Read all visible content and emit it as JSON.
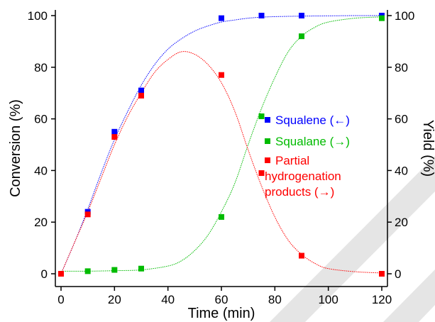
{
  "chart_data": {
    "type": "scatter",
    "xlabel": "Time (min)",
    "ylabel_left": "Conversion (%)",
    "ylabel_right": "Yield (%)",
    "xlim": [
      0,
      120
    ],
    "ylim": [
      0,
      100
    ],
    "xticks": [
      0,
      20,
      40,
      60,
      80,
      100,
      120
    ],
    "yticks": [
      0,
      20,
      40,
      60,
      80,
      100
    ],
    "grid": false,
    "legend_position": "right",
    "series": [
      {
        "name": "Squalene (←)",
        "color": "#0000ff",
        "x": [
          0,
          10,
          20,
          30,
          60,
          75,
          90,
          120
        ],
        "y": [
          0,
          24,
          55,
          71,
          99,
          100,
          100,
          100
        ],
        "fit_x": [
          0,
          5,
          10,
          15,
          20,
          25,
          30,
          35,
          40,
          45,
          50,
          55,
          60,
          65,
          70,
          75,
          80,
          90,
          100,
          110,
          120
        ],
        "fit_y": [
          0,
          12,
          25,
          39,
          52,
          63,
          73,
          81,
          87,
          91,
          94,
          96,
          97.5,
          98.3,
          99,
          99.4,
          99.6,
          99.8,
          99.9,
          100,
          100
        ]
      },
      {
        "name": "Squalane (→)",
        "color": "#00bb00",
        "x": [
          0,
          10,
          20,
          30,
          60,
          75,
          90,
          120
        ],
        "y": [
          0,
          1,
          1.5,
          2,
          22,
          61,
          92,
          99
        ],
        "fit_x": [
          0,
          10,
          20,
          30,
          40,
          45,
          50,
          55,
          60,
          65,
          70,
          75,
          80,
          85,
          90,
          95,
          100,
          110,
          120
        ],
        "fit_y": [
          1,
          1,
          1.2,
          1.5,
          3,
          5,
          9,
          15,
          24,
          35,
          50,
          64,
          76,
          86,
          92,
          95.5,
          97.5,
          99,
          99.5
        ]
      },
      {
        "name": "Partial hydrogenation products (→)",
        "color": "#ff0000",
        "x": [
          0,
          10,
          20,
          30,
          60,
          75,
          90,
          120
        ],
        "y": [
          0,
          23,
          53,
          69,
          77,
          39,
          7,
          0
        ],
        "fit_x": [
          0,
          5,
          10,
          15,
          20,
          25,
          30,
          35,
          40,
          45,
          50,
          55,
          60,
          65,
          70,
          75,
          80,
          85,
          90,
          95,
          100,
          110,
          120
        ],
        "fit_y": [
          0,
          12,
          24,
          37,
          50,
          61,
          70,
          78,
          83,
          86,
          85,
          81,
          74,
          63,
          48,
          34,
          22,
          13,
          7.5,
          4,
          2,
          0.8,
          0.3
        ]
      }
    ]
  },
  "legend": {
    "items": [
      {
        "label": "Squalene (←)",
        "color": "#0000ff"
      },
      {
        "label": "Squalane (→)",
        "color": "#00bb00"
      },
      {
        "label_lines": [
          "Partial",
          "hydrogenation",
          "products (→)"
        ],
        "color": "#ff0000"
      }
    ]
  }
}
